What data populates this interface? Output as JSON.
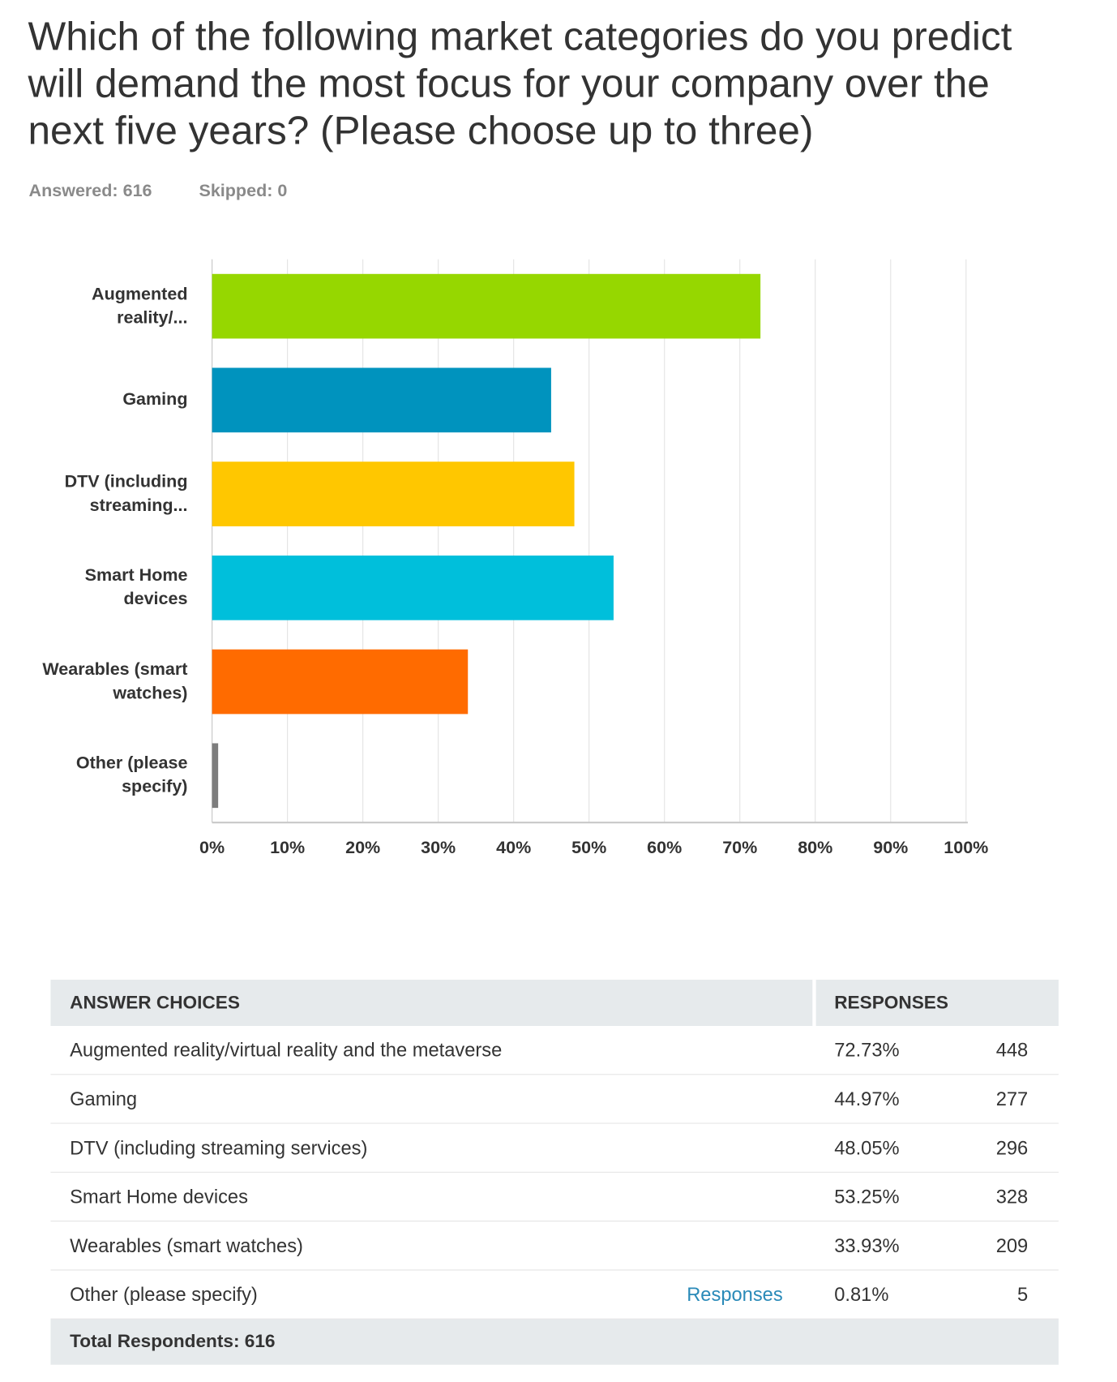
{
  "header": {
    "title": "Which of the following market categories do you predict will demand the most focus for your company over the next five years? (Please choose up to three)",
    "answered": "Answered: 616",
    "skipped": "Skipped: 0"
  },
  "chart_data": {
    "type": "bar",
    "orientation": "horizontal",
    "categories": [
      "Augmented reality/...",
      "Gaming",
      "DTV (including streaming...",
      "Smart Home devices",
      "Wearables (smart watches)",
      "Other (please specify)"
    ],
    "values": [
      72.73,
      44.97,
      48.05,
      53.25,
      33.93,
      0.81
    ],
    "colors": [
      "#96d700",
      "#0093be",
      "#ffc700",
      "#00bfdb",
      "#ff6b00",
      "#7d7d7d"
    ],
    "xlim": [
      0,
      100
    ],
    "xticks": [
      {
        "value": 0,
        "label": "0%"
      },
      {
        "value": 10,
        "label": "10%"
      },
      {
        "value": 20,
        "label": "20%"
      },
      {
        "value": 30,
        "label": "30%"
      },
      {
        "value": 40,
        "label": "40%"
      },
      {
        "value": 50,
        "label": "50%"
      },
      {
        "value": 60,
        "label": "60%"
      },
      {
        "value": 70,
        "label": "70%"
      },
      {
        "value": 80,
        "label": "80%"
      },
      {
        "value": 90,
        "label": "90%"
      },
      {
        "value": 100,
        "label": "100%"
      }
    ],
    "grid": true
  },
  "table": {
    "headers": [
      "ANSWER CHOICES",
      "RESPONSES"
    ],
    "rows": [
      {
        "choice": "Augmented reality/virtual reality and the metaverse",
        "percent": "72.73%",
        "count": 448
      },
      {
        "choice": "Gaming",
        "percent": "44.97%",
        "count": 277
      },
      {
        "choice": "DTV (including streaming services)",
        "percent": "48.05%",
        "count": 296
      },
      {
        "choice": "Smart Home devices",
        "percent": "53.25%",
        "count": 328
      },
      {
        "choice": "Wearables (smart watches)",
        "percent": "33.93%",
        "count": 209
      },
      {
        "choice": "Other (please specify)",
        "link": "Responses",
        "percent": "0.81%",
        "count": 5
      }
    ],
    "footer": "Total Respondents: 616"
  }
}
